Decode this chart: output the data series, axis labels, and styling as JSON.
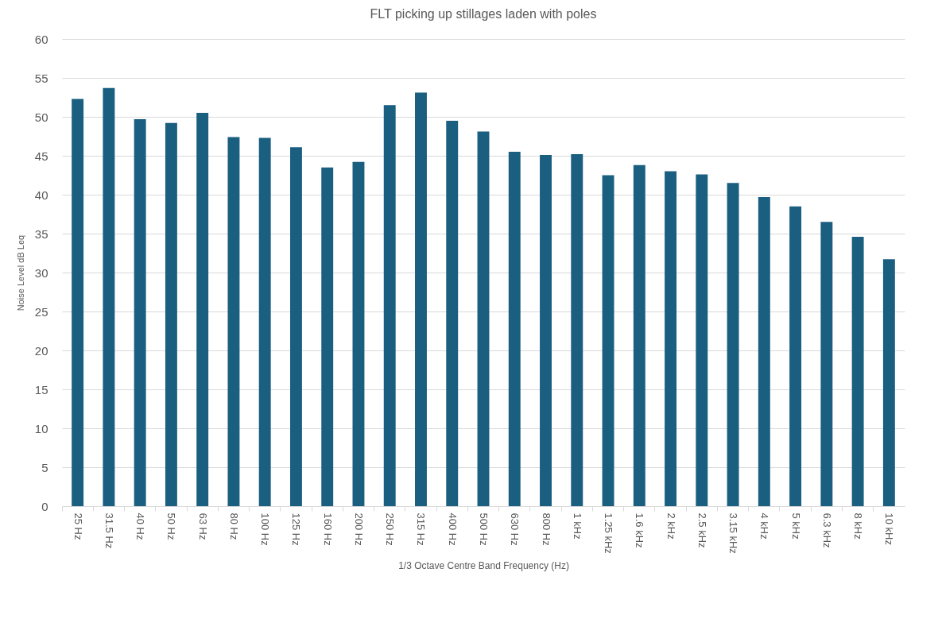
{
  "chart_data": {
    "type": "bar",
    "title": "FLT picking up stillages laden with poles",
    "xlabel": "1/3 Octave Centre Band Frequency (Hz)",
    "ylabel": "Noise Level dB Leq",
    "categories": [
      "25 Hz",
      "31.5 Hz",
      "40 Hz",
      "50 Hz",
      "63 Hz",
      "80 Hz",
      "100 Hz",
      "125 Hz",
      "160 Hz",
      "200 Hz",
      "250 Hz",
      "315 Hz",
      "400 Hz",
      "500 Hz",
      "630 Hz",
      "800 Hz",
      "1 kHz",
      "1.25 kHz",
      "1.6 kHz",
      "2 kHz",
      "2.5 kHz",
      "3.15 kHz",
      "4 kHz",
      "5 kHz",
      "6.3 kHz",
      "8 kHz",
      "10 kHz"
    ],
    "values": [
      52.3,
      53.7,
      49.7,
      49.2,
      50.5,
      47.4,
      47.3,
      46.1,
      43.5,
      44.2,
      51.5,
      53.1,
      49.5,
      48.1,
      45.5,
      45.1,
      45.2,
      42.5,
      43.8,
      43.0,
      42.6,
      41.5,
      39.7,
      38.5,
      36.5,
      34.6,
      31.7
    ],
    "color": "#1a5e80",
    "ylim": [
      0,
      60
    ],
    "yticks": [
      0,
      5,
      10,
      15,
      20,
      25,
      30,
      35,
      40,
      45,
      50,
      55,
      60
    ],
    "grid": "y"
  }
}
